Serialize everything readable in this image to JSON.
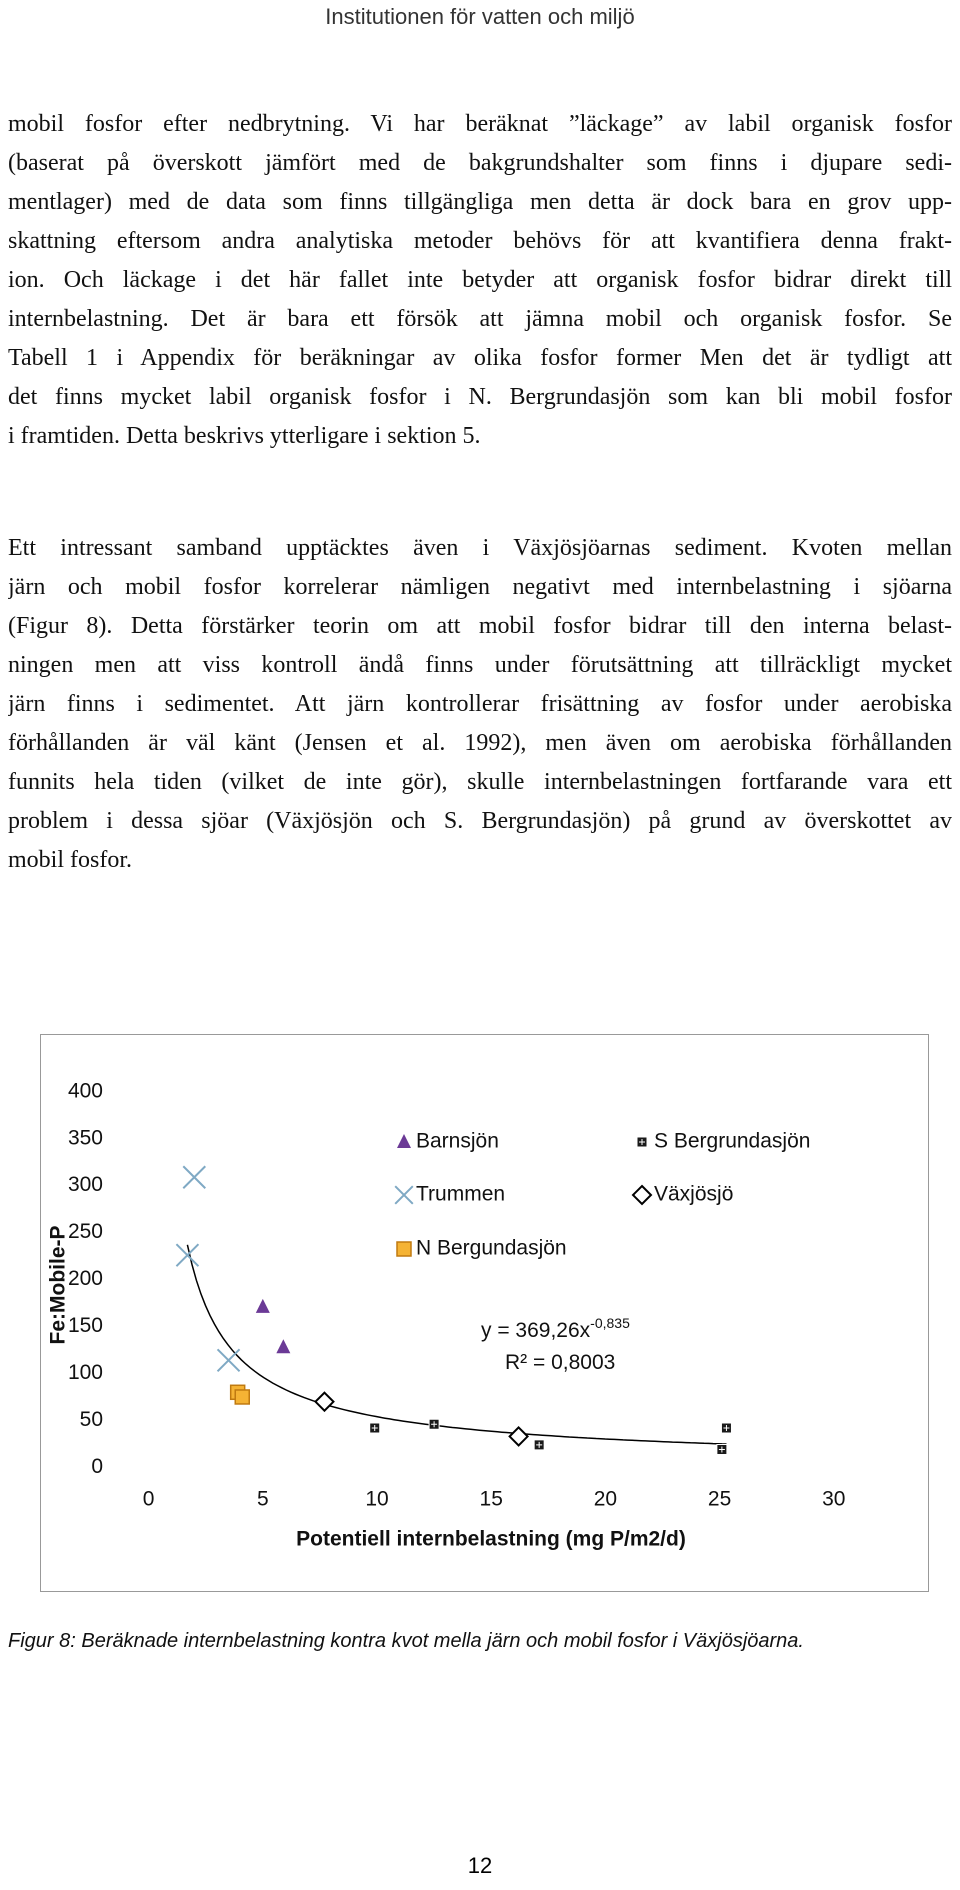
{
  "header": "Institutionen för vatten och miljö",
  "paragraphs": [
    [
      "mobil fosfor efter nedbrytning. Vi har beräknat ”läckage” av labil organisk fosfor",
      "(baserat på överskott jämfört med de bakgrundshalter som finns i djupare sedi-",
      "mentlager) med de data som finns tillgängliga men detta är dock bara en grov upp-",
      "skattning eftersom andra analytiska metoder behövs för att kvantifiera denna frakt-",
      "ion. Och läckage i det här fallet inte betyder att organisk fosfor bidrar direkt till",
      "internbelastning. Det är bara ett försök att jämna mobil och organisk fosfor. Se",
      "Tabell 1 i Appendix för beräkningar av olika fosfor former Men det är tydligt att",
      "det finns mycket labil organisk fosfor i N. Bergrundasjön som kan bli mobil fosfor",
      "i framtiden. Detta beskrivs ytterligare i sektion 5."
    ],
    [
      "Ett intressant samband upptäcktes även i Växjösjöarnas sediment. Kvoten mellan",
      "järn och mobil fosfor korrelerar nämligen negativt med internbelastning i sjöarna",
      "(Figur 8). Detta förstärker teorin om att mobil fosfor bidrar till den interna belast-",
      "ningen men att viss kontroll ändå finns under förutsättning att tillräckligt mycket",
      "järn finns i sedimentet. Att järn kontrollerar frisättning av fosfor under aerobiska",
      "förhållanden är väl känt (Jensen et al. 1992), men även om aerobiska förhållanden",
      "funnits hela tiden (vilket de inte gör), skulle internbelastningen fortfarande vara ett",
      "problem i dessa sjöar (Växjösjön och S. Bergrundasjön) på grund av överskottet av",
      "mobil fosfor."
    ]
  ],
  "chart_data": {
    "type": "scatter",
    "x_label": "Potentiell internbelastning (mg P/m2/d)",
    "y_label": "Fe:Mobile-P",
    "xlim": [
      0,
      30
    ],
    "xticks": [
      0,
      5,
      10,
      15,
      20,
      25,
      30
    ],
    "ylim": [
      0,
      400
    ],
    "yticks": [
      0,
      50,
      100,
      150,
      200,
      250,
      300,
      350,
      400
    ],
    "grid": false,
    "series": [
      {
        "name": "Barnsjön",
        "marker": "triangle",
        "color": "#6b3a96",
        "x": [
          5.0,
          5.9
        ],
        "values": [
          171,
          128
        ]
      },
      {
        "name": "S Bergrundasjön",
        "marker": "plus-square",
        "color": "#1a1a1a",
        "x": [
          9.9,
          12.5,
          17.1,
          25.3,
          25.1
        ],
        "values": [
          42,
          46,
          24,
          42,
          19
        ]
      },
      {
        "name": "Trummen",
        "marker": "x",
        "color": "#7fa9c4",
        "x": [
          2.0,
          1.7,
          3.5
        ],
        "values": [
          309,
          226,
          114
        ]
      },
      {
        "name": "Växjösjö",
        "marker": "diamond",
        "color": "#000000",
        "x": [
          7.7,
          16.2
        ],
        "values": [
          70,
          33
        ]
      },
      {
        "name": "N Bergundasjön",
        "marker": "square",
        "color": "#f5b334",
        "x": [
          3.9,
          4.1
        ],
        "values": [
          80,
          75
        ]
      }
    ],
    "trendline": {
      "coefficient": 369.26,
      "exponent": -0.835,
      "equation_label": "y = 369,26x",
      "exponent_label": "-0,835",
      "r2_label": "R² = 0,8003"
    }
  },
  "caption": "Figur 8: Beräknade internbelastning kontra kvot mella järn och mobil fosfor i Växjösjöarna.",
  "page_number": "12"
}
